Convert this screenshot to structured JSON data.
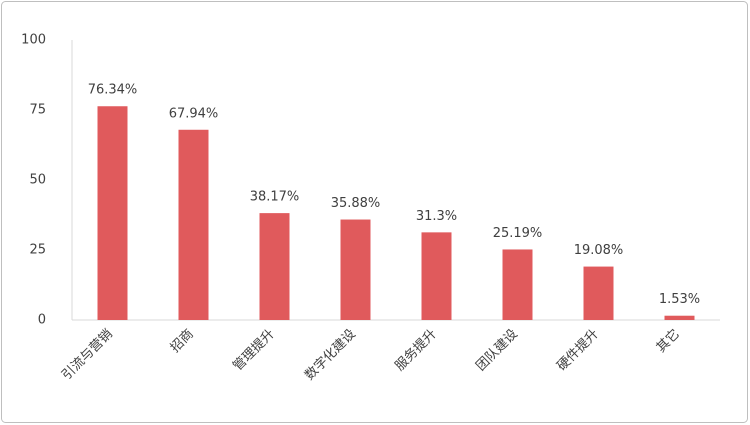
{
  "chart_data": {
    "type": "bar",
    "categories": [
      "引流与营销",
      "招商",
      "管理提升",
      "数字化建设",
      "服务提升",
      "团队建设",
      "硬件提升",
      "其它"
    ],
    "values": [
      76.34,
      67.94,
      38.17,
      35.88,
      31.3,
      25.19,
      19.08,
      1.53
    ],
    "value_labels": [
      "76.34%",
      "67.94%",
      "38.17%",
      "35.88%",
      "31.3%",
      "25.19%",
      "19.08%",
      "1.53%"
    ],
    "color": "#e05a5c",
    "ylim": [
      0,
      100
    ],
    "yticks": [
      0,
      25,
      50,
      75,
      100
    ],
    "grid": false
  }
}
